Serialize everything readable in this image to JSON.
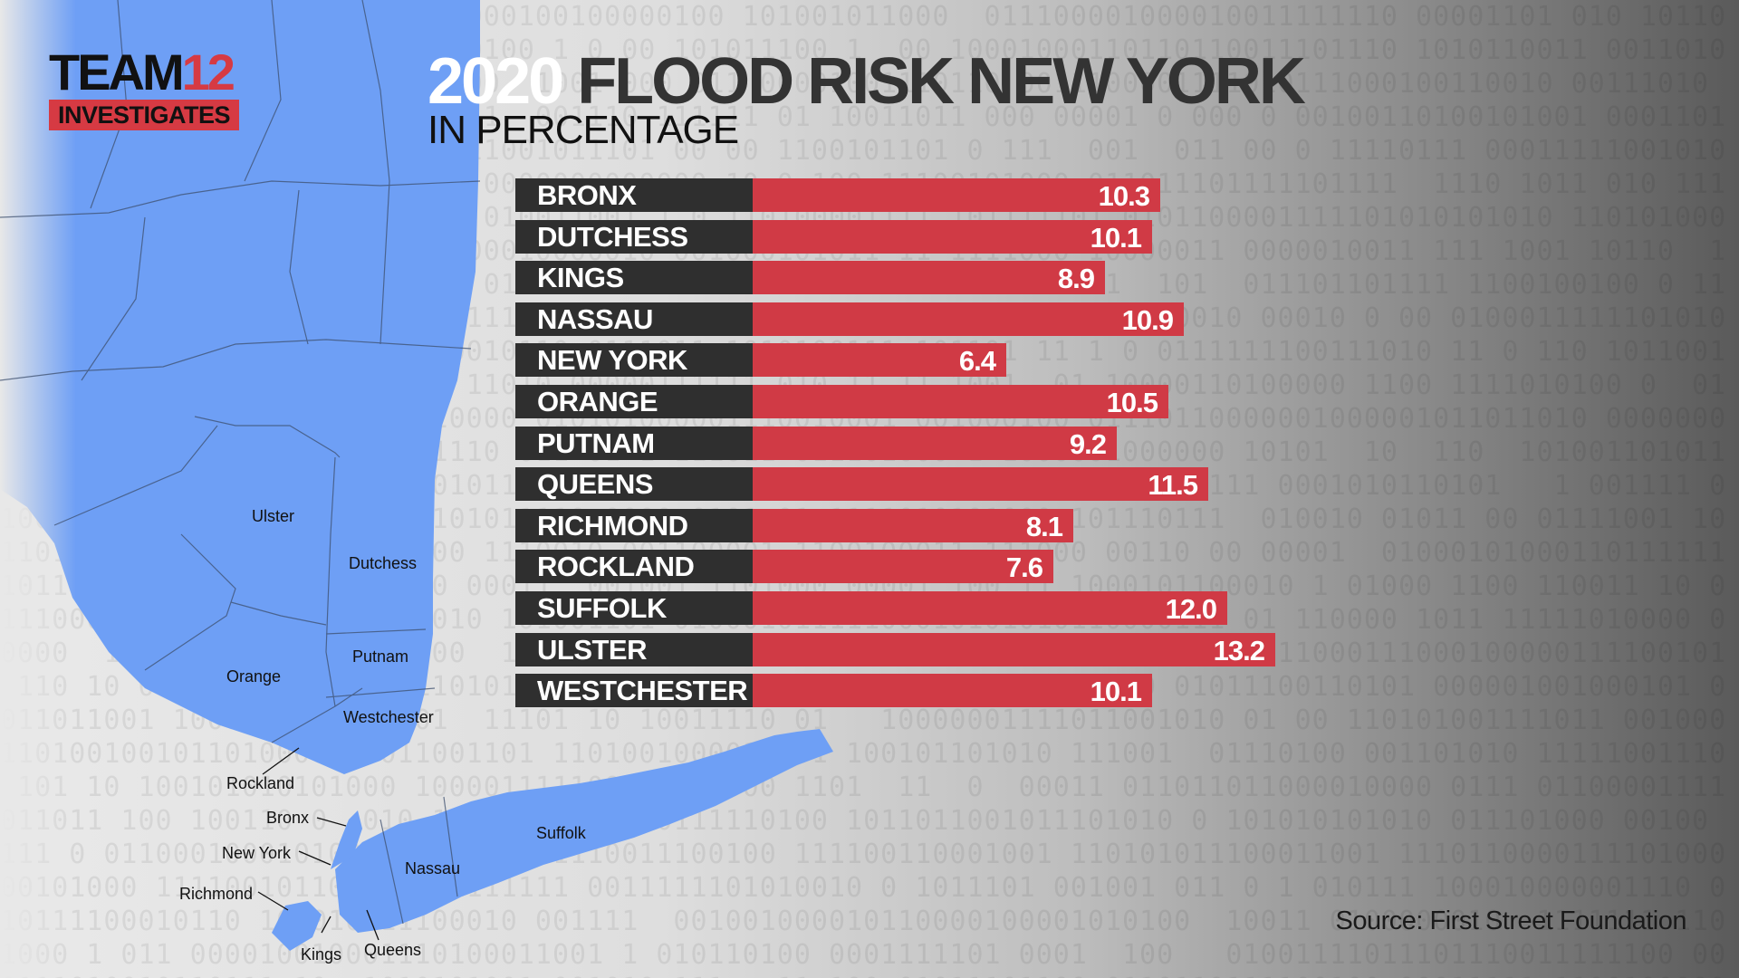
{
  "logo": {
    "line1_team": "TEAM",
    "line1_number": "12",
    "line2": "INVESTIGATES"
  },
  "map_labels": {
    "ulster": "Ulster",
    "dutchess": "Dutchess",
    "orange": "Orange",
    "putnam": "Putnam",
    "westchester": "Westchester",
    "rockland": "Rockland",
    "bronx": "Bronx",
    "new_york": "New York",
    "richmond": "Richmond",
    "kings": "Kings",
    "queens": "Queens",
    "nassau": "Nassau",
    "suffolk": "Suffolk"
  },
  "chart_data": {
    "type": "bar",
    "orientation": "horizontal",
    "title_year": "2020",
    "title_rest": "FLOOD RISK NEW YORK",
    "subtitle": "IN PERCENTAGE",
    "categories": [
      "BRONX",
      "DUTCHESS",
      "KINGS",
      "NASSAU",
      "NEW YORK",
      "ORANGE",
      "PUTNAM",
      "QUEENS",
      "RICHMOND",
      "ROCKLAND",
      "SUFFOLK",
      "ULSTER",
      "WESTCHESTER"
    ],
    "values": [
      10.3,
      10.1,
      8.9,
      10.9,
      6.4,
      10.5,
      9.2,
      11.5,
      8.1,
      7.6,
      12.0,
      13.2,
      10.1
    ],
    "value_labels": [
      "10.3",
      "10.1",
      "8.9",
      "10.9",
      "6.4",
      "10.5",
      "9.2",
      "11.5",
      "8.1",
      "7.6",
      "12.0",
      "13.2",
      "10.1"
    ],
    "source": "Source: First Street Foundation",
    "bar_color": "#d03a45",
    "label_background": "#2f2f2f"
  },
  "colors": {
    "accent": "#d63a43",
    "map_fill": "#6e9ff5"
  }
}
